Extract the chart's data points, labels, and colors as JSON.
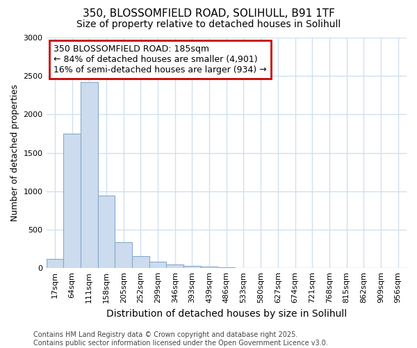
{
  "title1": "350, BLOSSOMFIELD ROAD, SOLIHULL, B91 1TF",
  "title2": "Size of property relative to detached houses in Solihull",
  "xlabel": "Distribution of detached houses by size in Solihull",
  "ylabel": "Number of detached properties",
  "categories": [
    "17sqm",
    "64sqm",
    "111sqm",
    "158sqm",
    "205sqm",
    "252sqm",
    "299sqm",
    "346sqm",
    "393sqm",
    "439sqm",
    "486sqm",
    "533sqm",
    "580sqm",
    "627sqm",
    "674sqm",
    "721sqm",
    "768sqm",
    "815sqm",
    "862sqm",
    "909sqm",
    "956sqm"
  ],
  "values": [
    120,
    1750,
    2420,
    940,
    340,
    160,
    80,
    50,
    30,
    20,
    8,
    3,
    1,
    0,
    0,
    0,
    0,
    0,
    0,
    0,
    0
  ],
  "bar_color": "#ccdcee",
  "bar_edge_color": "#85a9cc",
  "annotation_text": "350 BLOSSOMFIELD ROAD: 185sqm\n← 84% of detached houses are smaller (4,901)\n16% of semi-detached houses are larger (934) →",
  "annotation_box_color": "#cc0000",
  "ylim": [
    0,
    3000
  ],
  "yticks": [
    0,
    500,
    1000,
    1500,
    2000,
    2500,
    3000
  ],
  "background_color": "#ffffff",
  "plot_bg_color": "#ffffff",
  "footer_text": "Contains HM Land Registry data © Crown copyright and database right 2025.\nContains public sector information licensed under the Open Government Licence v3.0.",
  "grid_color": "#d0e0f0",
  "title_fontsize": 11,
  "subtitle_fontsize": 10,
  "tick_fontsize": 8,
  "annotation_fontsize": 9,
  "ylabel_fontsize": 9,
  "xlabel_fontsize": 10,
  "footer_fontsize": 7
}
